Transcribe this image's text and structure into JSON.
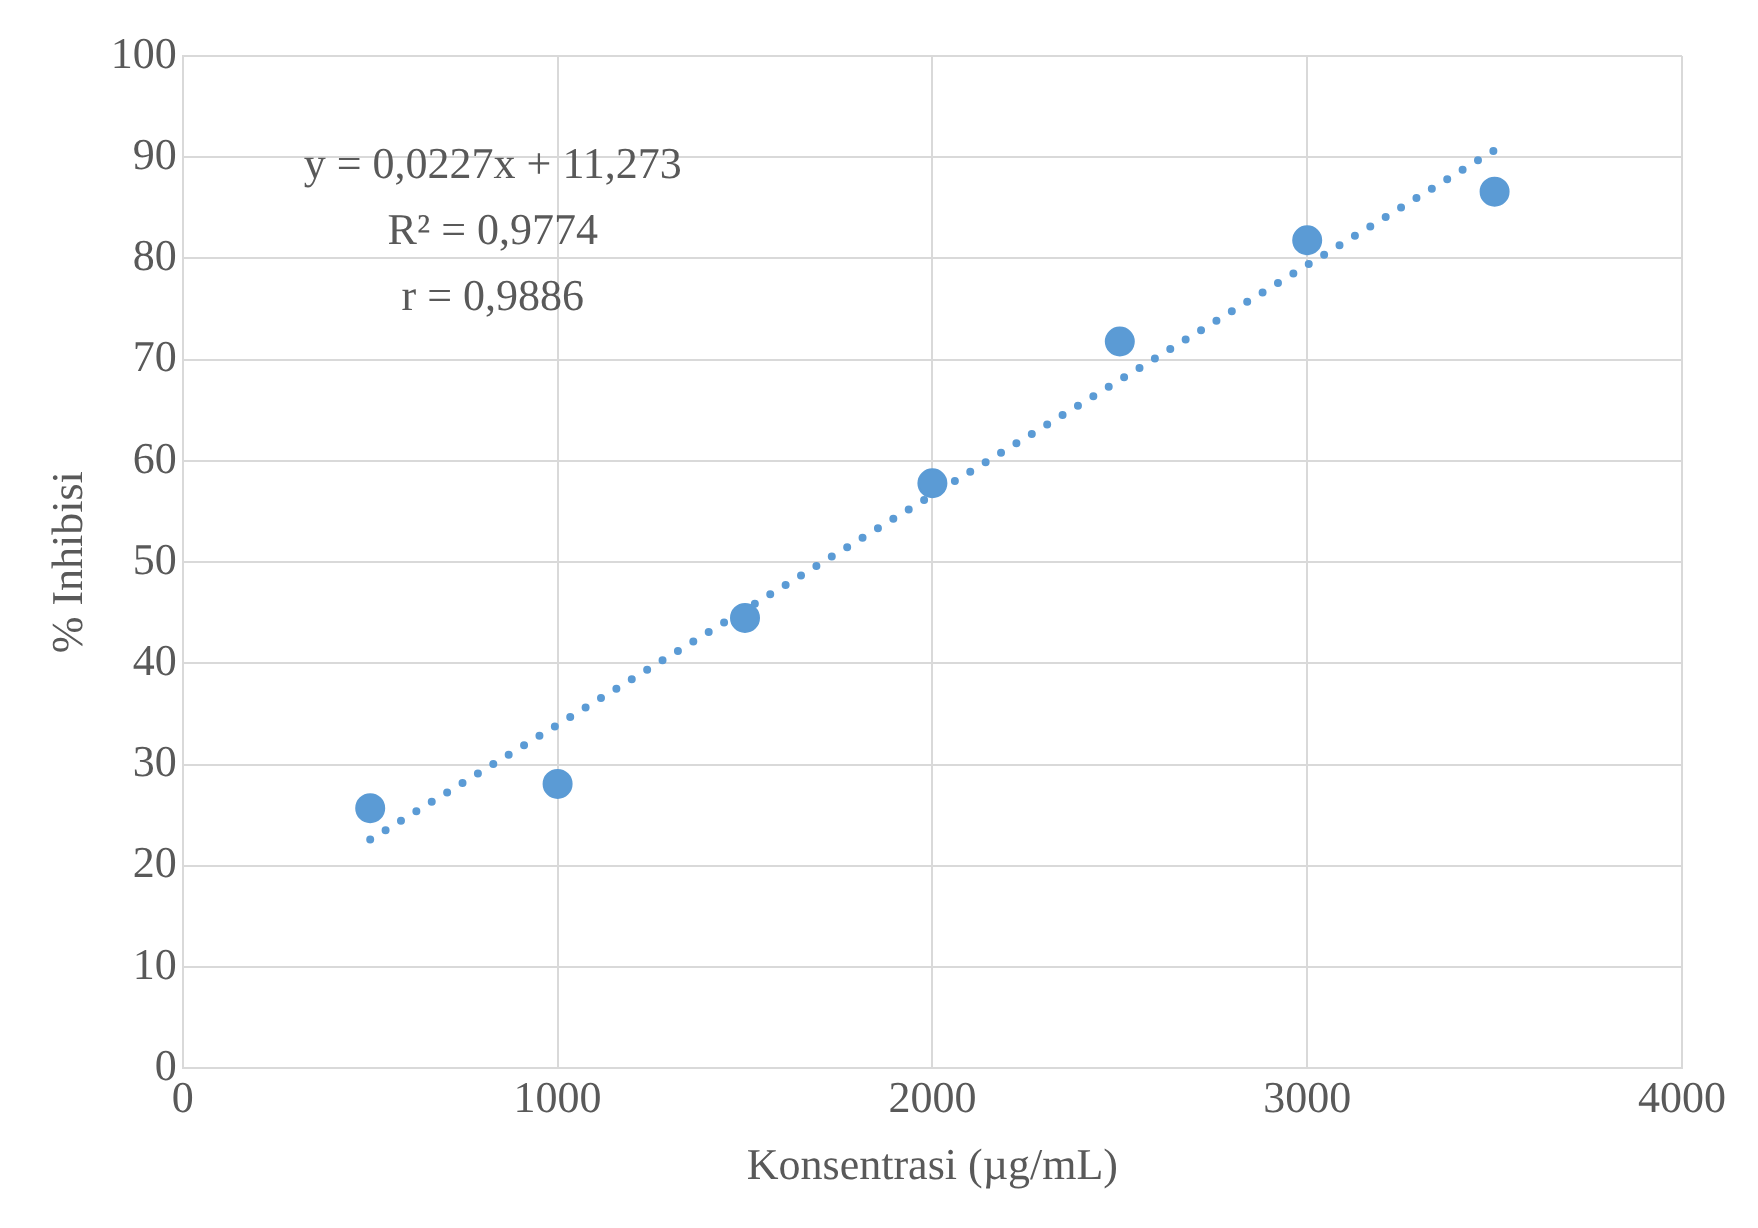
{
  "chart_data": {
    "type": "scatter",
    "xlabel": "Konsentrasi (µg/mL)",
    "ylabel": "% Inhibisi",
    "xlim": [
      0,
      4000
    ],
    "xticks": [
      0,
      1000,
      2000,
      3000,
      4000
    ],
    "ylim": [
      0,
      100
    ],
    "yticks": [
      0,
      10,
      20,
      30,
      40,
      50,
      60,
      70,
      80,
      90,
      100
    ],
    "grid": true,
    "legend": false,
    "marker": "circle",
    "annotations": [
      "y = 0,0227x + 11,273",
      "R² = 0,9774",
      "r = 0,9886"
    ],
    "series": [
      {
        "type": "scatter",
        "color": "#5b9bd5",
        "x": [
          500,
          1000,
          1500,
          2000,
          2500,
          3000,
          3500
        ],
        "values": [
          25.7,
          28.1,
          44.5,
          57.8,
          71.8,
          81.8,
          86.6
        ]
      },
      {
        "type": "line",
        "color": "#5b9bd5",
        "marker": "none",
        "line_style": "dotted",
        "x": [
          500,
          3500
        ],
        "values": [
          22.6,
          90.7
        ]
      }
    ]
  }
}
